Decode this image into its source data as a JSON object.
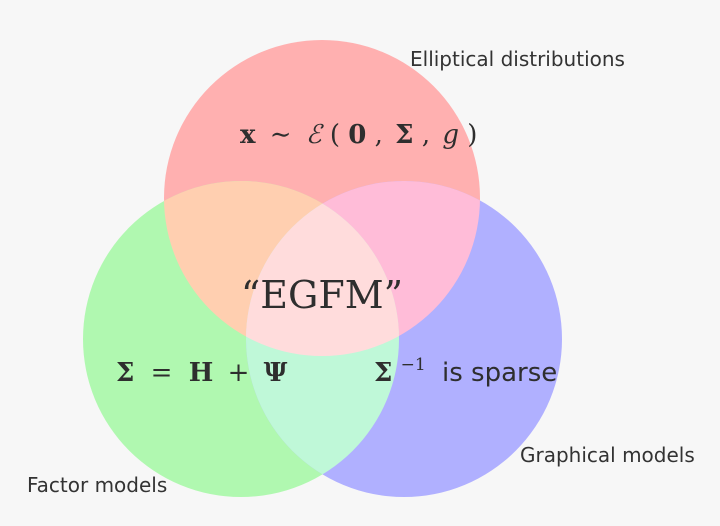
{
  "colors": {
    "background": "#f7f7f7",
    "elliptical": "#ffb0b0",
    "factor": "#b0f8b0",
    "graphical": "#b0b0ff",
    "elliptical_factor": "#ffcfb0",
    "elliptical_graphical": "#ffbcd8",
    "factor_graphical": "#bff8d8",
    "all_three": "#ffdcdc",
    "text": "#333333"
  },
  "sets": {
    "elliptical": {
      "label": "Elliptical distributions",
      "formula": {
        "x": "x",
        "sim": "∼",
        "script_e": "ℰ",
        "open": "(",
        "zero": "0",
        "comma1": ",",
        "sigma": "Σ",
        "comma2": ",",
        "g": "g",
        "close": ")"
      }
    },
    "factor": {
      "label": "Factor models",
      "formula": {
        "sigma": "Σ",
        "eq": "=",
        "h": "H",
        "plus": "+",
        "psi": "Ψ"
      }
    },
    "graphical": {
      "label": "Graphical models",
      "formula": {
        "sigma": "Σ",
        "exponent": "−1",
        "text": "is sparse"
      }
    }
  },
  "center_label": "“EGFM”"
}
